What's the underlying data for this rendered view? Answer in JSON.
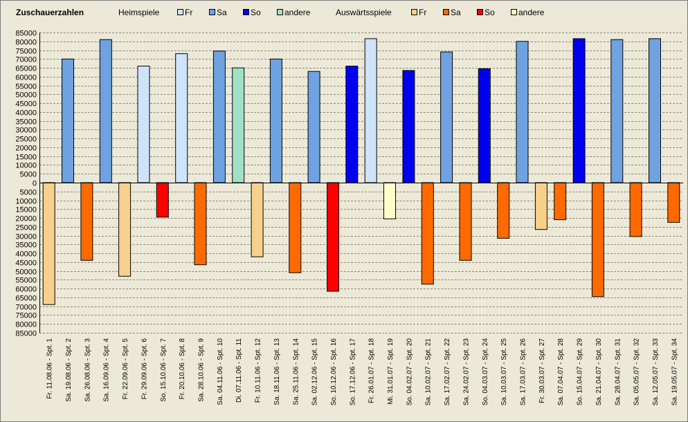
{
  "header": {
    "title": "Zuschauerzahlen",
    "home_label": "Heimspiele",
    "away_label": "Auswärtsspiele",
    "legend": [
      {
        "group": "home",
        "label": "Fr",
        "color": "#cfe3fb"
      },
      {
        "group": "home",
        "label": "Sa",
        "color": "#6ea2e0"
      },
      {
        "group": "home",
        "label": "So",
        "color": "#0000f0"
      },
      {
        "group": "home",
        "label": "andere",
        "color": "#9fe1c6"
      },
      {
        "group": "away",
        "label": "Fr",
        "color": "#f7d08c"
      },
      {
        "group": "away",
        "label": "Sa",
        "color": "#ff6a00"
      },
      {
        "group": "away",
        "label": "So",
        "color": "#ff0000"
      },
      {
        "group": "away",
        "label": "andere",
        "color": "#ffffcc"
      }
    ]
  },
  "chart_data": {
    "type": "bar",
    "title": "Zuschauerzahlen",
    "xlabel": "",
    "ylabel": "",
    "ylim": [
      -85000,
      85000
    ],
    "ytick_step": 5000,
    "grid": true,
    "legend_position": "top",
    "categories": [
      "Fr. 11.08.06 - Spt. 1",
      "Sa. 19.08.06 - Spt. 2",
      "Sa. 26.08.06 - Spt. 3",
      "Sa. 16.09.06 - Spt. 4",
      "Fr. 22.09.06 - Spt. 5",
      "Fr. 29.09.06 - Spt. 6",
      "So. 15.10.06 - Spt. 7",
      "Fr. 20.10.06 - Spt. 8",
      "Sa. 28.10.06 - Spt. 9",
      "Sa. 04.11.06 - Spt. 10",
      "Di. 07.11.06 - Spt. 11",
      "Fr. 10.11.06 - Spt. 12",
      "Sa. 18.11.06 - Spt. 13",
      "Sa. 25.11.06 - Spt. 14",
      "Sa. 02.12.06 - Spt. 15",
      "So. 10.12.06 - Spt. 16",
      "So. 17.12.06 - Spt. 17",
      "Fr. 26.01.07 - Spt. 18",
      "Mi. 31.01.07 - Spt. 19",
      "So. 04.02.07 - Spt. 20",
      "Sa. 10.02.07 - Spt. 21",
      "Sa. 17.02.07 - Spt. 22",
      "Sa. 24.02.07 - Spt. 23",
      "So. 04.03.07 - Spt. 24",
      "Sa. 10.03.07 - Spt. 25",
      "Sa. 17.03.07 - Spt. 26",
      "Fr. 30.03.07 - Spt. 27",
      "Sa. 07.04.07 - Spt. 28",
      "So. 15.04.07 - Spt. 29",
      "Sa. 21.04.07 - Spt. 30",
      "Sa. 28.04.07 - Spt. 31",
      "Sa. 05.05.07 - Spt. 32",
      "Sa. 12.05.07 - Spt. 33",
      "Sa. 19.05.07 - Spt. 34"
    ],
    "bars": [
      {
        "value": -69000,
        "color": "#f7d08c"
      },
      {
        "value": 70000,
        "color": "#6ea2e0"
      },
      {
        "value": -44000,
        "color": "#ff6a00"
      },
      {
        "value": 81000,
        "color": "#6ea2e0"
      },
      {
        "value": -53000,
        "color": "#f7d08c"
      },
      {
        "value": 66000,
        "color": "#cfe3fb"
      },
      {
        "value": -19500,
        "color": "#ff0000"
      },
      {
        "value": 73000,
        "color": "#cfe3fb"
      },
      {
        "value": -46500,
        "color": "#ff6a00"
      },
      {
        "value": 74500,
        "color": "#6ea2e0"
      },
      {
        "value": 65000,
        "color": "#9fe1c6"
      },
      {
        "value": -42000,
        "color": "#f7d08c"
      },
      {
        "value": 70000,
        "color": "#6ea2e0"
      },
      {
        "value": -51000,
        "color": "#ff6a00"
      },
      {
        "value": 63000,
        "color": "#6ea2e0"
      },
      {
        "value": -61500,
        "color": "#ff0000"
      },
      {
        "value": 66000,
        "color": "#0000f0"
      },
      {
        "value": 81500,
        "color": "#cfe3fb"
      },
      {
        "value": -20500,
        "color": "#ffffcc"
      },
      {
        "value": 63500,
        "color": "#0000f0"
      },
      {
        "value": -57500,
        "color": "#ff6a00"
      },
      {
        "value": 74000,
        "color": "#6ea2e0"
      },
      {
        "value": -44000,
        "color": "#ff6a00"
      },
      {
        "value": 64500,
        "color": "#0000f0"
      },
      {
        "value": -31500,
        "color": "#ff6a00"
      },
      {
        "value": 80000,
        "color": "#6ea2e0"
      },
      {
        "value": -26500,
        "color": "#f7d08c"
      },
      {
        "value": -21000,
        "color": "#ff6a00"
      },
      {
        "value": 81500,
        "color": "#0000f0"
      },
      {
        "value": -64500,
        "color": "#ff6a00"
      },
      {
        "value": 81000,
        "color": "#6ea2e0"
      },
      {
        "value": -30500,
        "color": "#ff6a00"
      },
      {
        "value": 81500,
        "color": "#6ea2e0"
      },
      {
        "value": -22500,
        "color": "#ff6a00"
      }
    ]
  }
}
